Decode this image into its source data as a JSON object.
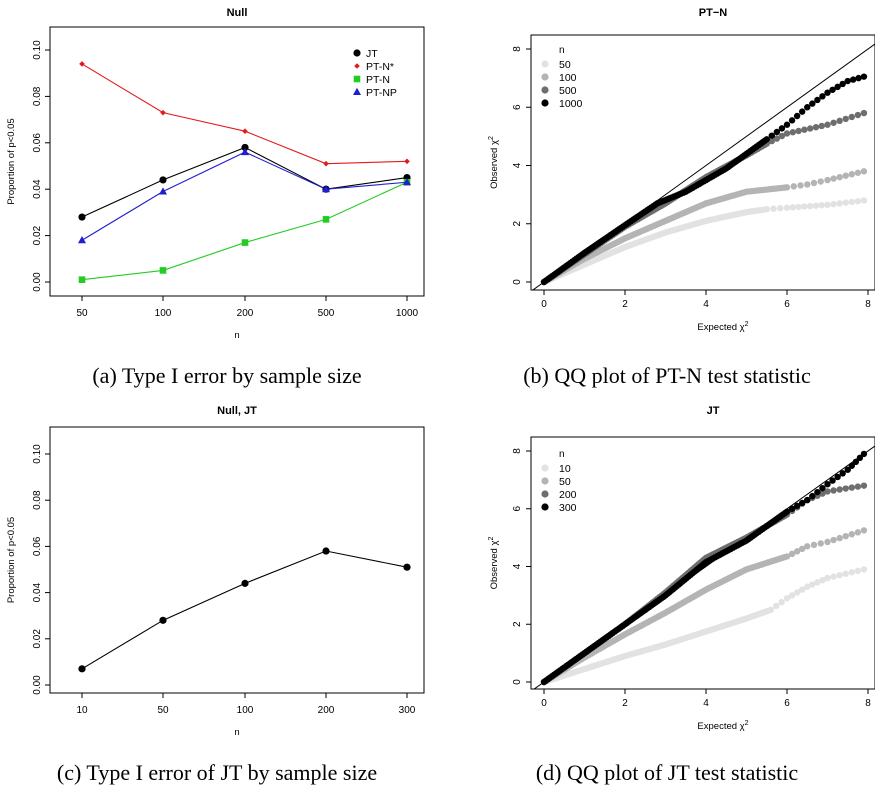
{
  "chart_data": [
    {
      "id": "a",
      "type": "line",
      "title": "Null",
      "xlabel": "n",
      "ylabel": "Proportion of p<0.05",
      "categories": [
        "50",
        "100",
        "200",
        "500",
        "1000"
      ],
      "ylim": [
        0,
        0.1
      ],
      "yticks": [
        "0.00",
        "0.02",
        "0.04",
        "0.06",
        "0.08",
        "0.10"
      ],
      "legend_position": "top-right",
      "series": [
        {
          "name": "JT",
          "color": "#000000",
          "marker": "circle",
          "values": [
            0.028,
            0.044,
            0.058,
            0.04,
            0.045
          ]
        },
        {
          "name": "PT-N*",
          "color": "#e41a1c",
          "marker": "diamond",
          "values": [
            0.094,
            0.073,
            0.065,
            0.051,
            0.052
          ]
        },
        {
          "name": "PT-N",
          "color": "#22cc22",
          "marker": "square",
          "values": [
            0.001,
            0.005,
            0.017,
            0.027,
            0.043
          ]
        },
        {
          "name": "PT-NP",
          "color": "#1f1fd0",
          "marker": "triangle",
          "values": [
            0.018,
            0.039,
            0.056,
            0.04,
            0.043
          ]
        }
      ],
      "caption": "(a) Type I error by sample size"
    },
    {
      "id": "b",
      "type": "scatter",
      "title": "PT−N",
      "xlabel": "Expected χ",
      "ylabel": "Observed χ",
      "label_superscript": "2",
      "xlim": [
        0,
        8
      ],
      "ylim": [
        0,
        8
      ],
      "xticks": [
        "0",
        "2",
        "4",
        "6",
        "8"
      ],
      "yticks": [
        "0",
        "2",
        "4",
        "6",
        "8"
      ],
      "legend_title": "n",
      "legend_position": "top-left",
      "reference_line": "y = x",
      "series": [
        {
          "name": "50",
          "color": "#e2e2e2",
          "x": [
            0,
            1,
            2,
            3,
            4,
            5,
            5.5,
            6,
            7,
            7.9
          ],
          "y": [
            0,
            0.6,
            1.2,
            1.7,
            2.1,
            2.4,
            2.5,
            2.55,
            2.65,
            2.8
          ]
        },
        {
          "name": "100",
          "color": "#b4b4b4",
          "x": [
            0,
            1,
            2,
            3,
            4,
            5,
            6,
            6.5,
            7,
            7.9
          ],
          "y": [
            0,
            0.8,
            1.5,
            2.1,
            2.7,
            3.1,
            3.25,
            3.35,
            3.5,
            3.8
          ]
        },
        {
          "name": "500",
          "color": "#6e6e6e",
          "x": [
            0,
            1,
            2,
            3,
            4,
            5,
            5.5,
            6,
            7,
            7.9
          ],
          "y": [
            0,
            0.95,
            1.9,
            2.7,
            3.6,
            4.35,
            4.75,
            5.1,
            5.4,
            5.8
          ]
        },
        {
          "name": "1000",
          "color": "#000000",
          "x": [
            0,
            1,
            2,
            2.8,
            3.5,
            4,
            4.5,
            5,
            5.5,
            6,
            6.5,
            7,
            7.5,
            7.9
          ],
          "y": [
            0,
            1.0,
            1.95,
            2.7,
            3.1,
            3.5,
            3.9,
            4.4,
            4.9,
            5.4,
            6.0,
            6.5,
            6.9,
            7.05
          ]
        }
      ],
      "caption": "(b) QQ plot of PT-N test statistic"
    },
    {
      "id": "c",
      "type": "line",
      "title": "Null, JT",
      "xlabel": "n",
      "ylabel": "Proportion of p<0.05",
      "categories": [
        "10",
        "50",
        "100",
        "200",
        "300"
      ],
      "ylim": [
        0,
        0.1
      ],
      "yticks": [
        "0.00",
        "0.02",
        "0.04",
        "0.06",
        "0.08",
        "0.10"
      ],
      "series": [
        {
          "name": "JT",
          "color": "#000000",
          "marker": "circle",
          "values": [
            0.007,
            0.028,
            0.044,
            0.058,
            0.051
          ]
        }
      ],
      "caption": "(c) Type I error of JT by sample size"
    },
    {
      "id": "d",
      "type": "scatter",
      "title": "JT",
      "xlabel": "Expected χ",
      "ylabel": "Observed χ",
      "label_superscript": "2",
      "xlim": [
        0,
        8
      ],
      "ylim": [
        0,
        8
      ],
      "xticks": [
        "0",
        "2",
        "4",
        "6",
        "8"
      ],
      "yticks": [
        "0",
        "2",
        "4",
        "6",
        "8"
      ],
      "legend_title": "n",
      "legend_position": "top-left",
      "reference_line": "y = x",
      "series": [
        {
          "name": "10",
          "color": "#e2e2e2",
          "x": [
            0,
            1,
            2,
            3,
            4,
            5,
            5.6,
            6,
            6.5,
            7,
            7.9
          ],
          "y": [
            0,
            0.45,
            0.9,
            1.3,
            1.75,
            2.2,
            2.5,
            2.9,
            3.3,
            3.6,
            3.9
          ]
        },
        {
          "name": "50",
          "color": "#b4b4b4",
          "x": [
            0,
            1,
            2,
            3,
            4,
            5,
            6,
            6.5,
            7,
            7.9
          ],
          "y": [
            0,
            0.85,
            1.65,
            2.4,
            3.2,
            3.9,
            4.35,
            4.7,
            4.85,
            5.25
          ]
        },
        {
          "name": "200",
          "color": "#6e6e6e",
          "x": [
            0,
            1,
            2,
            3,
            4,
            5,
            6,
            6.5,
            7,
            7.9
          ],
          "y": [
            0,
            1.0,
            2.0,
            3.1,
            4.3,
            5.0,
            5.8,
            6.3,
            6.6,
            6.8
          ]
        },
        {
          "name": "300",
          "color": "#000000",
          "x": [
            0,
            1,
            2,
            3,
            4,
            5,
            6,
            6.5,
            7,
            7.5,
            7.9
          ],
          "y": [
            0,
            1.0,
            2.0,
            3.0,
            4.15,
            4.9,
            5.9,
            6.3,
            6.85,
            7.35,
            7.9
          ]
        }
      ],
      "caption": "(d) QQ plot of JT test statistic"
    }
  ]
}
